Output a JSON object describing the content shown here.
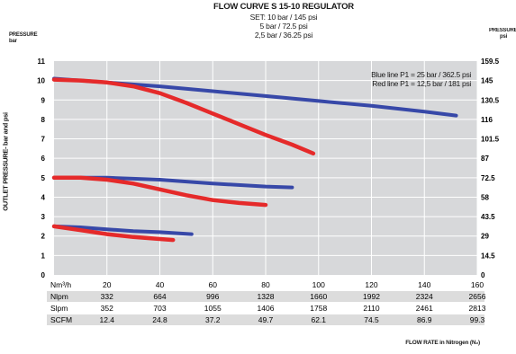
{
  "chart_data": {
    "type": "line",
    "title": "FLOW CURVE S 15-10 REGULATOR",
    "subtitle": [
      "SET: 10 bar / 145 psi",
      "5 bar / 72.5 psi",
      "2,5 bar / 36.25 psi"
    ],
    "ylabel_left_head": [
      "PRESSURE",
      "bar"
    ],
    "ylabel_right_head": [
      "PRESSURE",
      "psi"
    ],
    "ylabel": "OUTLET PRESSURE- bar and psi",
    "xlabel": "FLOW RATE in Nitrogen (N₂)",
    "xlim": [
      0,
      160
    ],
    "ylim": [
      0,
      11
    ],
    "x_ticks": [
      "20",
      "40",
      "60",
      "80",
      "100",
      "120",
      "140",
      "160"
    ],
    "x_tick_values": [
      20,
      40,
      60,
      80,
      100,
      120,
      140,
      160
    ],
    "x_unit_label": "Nm³/h",
    "y_ticks_left": [
      "0",
      "1",
      "2",
      "3",
      "4",
      "5",
      "6",
      "7",
      "8",
      "9",
      "10",
      "11"
    ],
    "y_ticks_right": [
      "0",
      "14.5",
      "29",
      "43.5",
      "58",
      "72.5",
      "87",
      "101.5",
      "116",
      "130.5",
      "145",
      "159.5"
    ],
    "legend": [
      "Blue line P1 = 25 bar / 362.5 psi",
      "Red line P1 = 12,5 bar / 181 psi"
    ],
    "legend_placement": "top-right",
    "grid": true,
    "colors": {
      "blue": "#3748a8",
      "red": "#e52a2a",
      "plot_bg": "#d7d8da",
      "grid": "#ffffff"
    },
    "series": [
      {
        "color": "blue",
        "x": [
          0,
          20,
          40,
          60,
          80,
          100,
          120,
          140,
          152
        ],
        "y": [
          10.1,
          9.9,
          9.7,
          9.45,
          9.2,
          8.95,
          8.7,
          8.4,
          8.2
        ]
      },
      {
        "color": "red",
        "x": [
          0,
          10,
          20,
          30,
          40,
          50,
          60,
          70,
          80,
          90,
          98
        ],
        "y": [
          10.05,
          10.0,
          9.9,
          9.7,
          9.35,
          8.85,
          8.3,
          7.75,
          7.2,
          6.7,
          6.25
        ]
      },
      {
        "color": "blue",
        "x": [
          0,
          20,
          40,
          60,
          80,
          90
        ],
        "y": [
          5.0,
          5.0,
          4.9,
          4.7,
          4.55,
          4.5
        ]
      },
      {
        "color": "red",
        "x": [
          0,
          10,
          20,
          30,
          40,
          50,
          60,
          70,
          80
        ],
        "y": [
          5.0,
          5.0,
          4.9,
          4.7,
          4.4,
          4.1,
          3.85,
          3.7,
          3.6
        ]
      },
      {
        "color": "blue",
        "x": [
          0,
          10,
          20,
          30,
          40,
          52
        ],
        "y": [
          2.5,
          2.45,
          2.35,
          2.25,
          2.2,
          2.1
        ]
      },
      {
        "color": "red",
        "x": [
          0,
          10,
          20,
          30,
          40,
          45
        ],
        "y": [
          2.5,
          2.3,
          2.1,
          1.95,
          1.85,
          1.8
        ]
      }
    ],
    "table": {
      "rows": [
        {
          "label": "Nlpm",
          "values": [
            "332",
            "664",
            "996",
            "1328",
            "1660",
            "1992",
            "2324",
            "2656"
          ]
        },
        {
          "label": "Slpm",
          "values": [
            "352",
            "703",
            "1055",
            "1406",
            "1758",
            "2110",
            "2461",
            "2813"
          ]
        },
        {
          "label": "SCFM",
          "values": [
            "12.4",
            "24.8",
            "37.2",
            "49.7",
            "62.1",
            "74.5",
            "86.9",
            "99.3"
          ]
        }
      ]
    }
  }
}
